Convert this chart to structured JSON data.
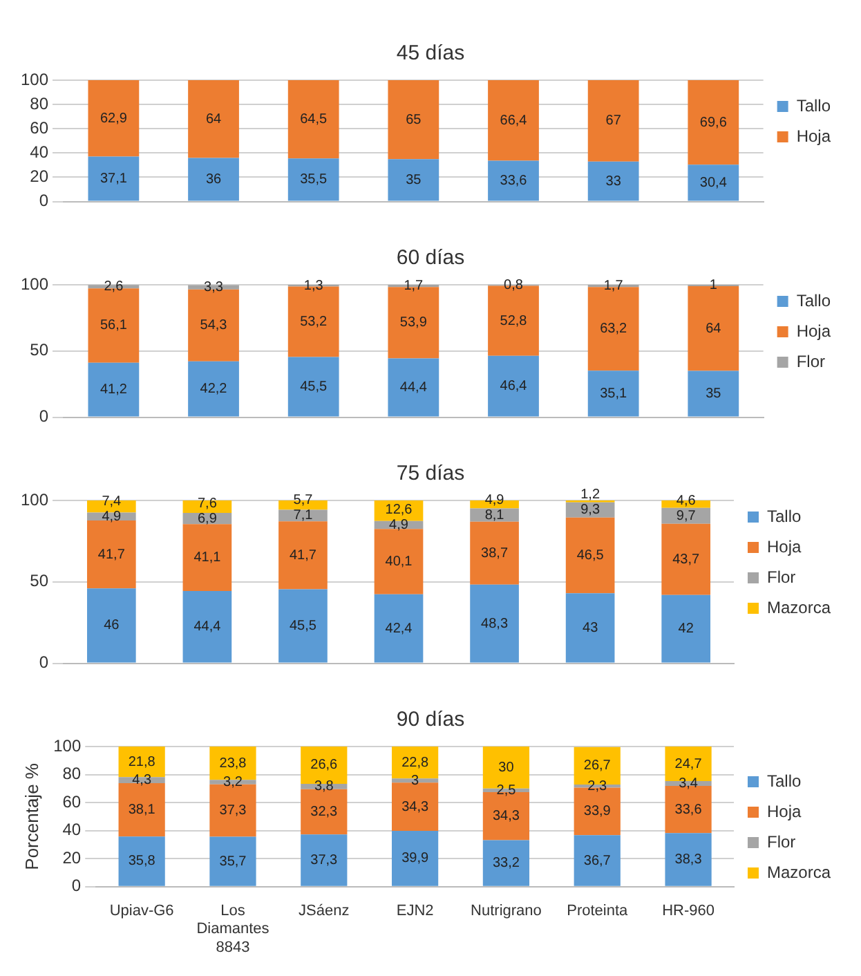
{
  "chart_data": [
    {
      "type": "bar",
      "title": "45 días",
      "stacked": true,
      "categories": [
        null,
        null,
        null,
        null,
        null,
        null,
        null
      ],
      "tick_labels": "y",
      "ylim": [
        0,
        100
      ],
      "yticks": [
        0,
        20,
        40,
        60,
        80,
        100
      ],
      "grid": "y",
      "legend": "right",
      "series": [
        {
          "name": "Tallo",
          "color": "#5b9bd5",
          "values": [
            37.1,
            36,
            35.5,
            35,
            33.6,
            33,
            30.4
          ],
          "value_labels": [
            "37,1",
            "36",
            "35,5",
            "35",
            "33,6",
            "33",
            "30,4"
          ]
        },
        {
          "name": "Hoja",
          "color": "#ed7d31",
          "values": [
            62.9,
            64,
            64.5,
            65,
            66.4,
            67,
            69.6
          ],
          "value_labels": [
            "62,9",
            "64",
            "64,5",
            "65",
            "66,4",
            "67",
            "69,6"
          ]
        }
      ]
    },
    {
      "type": "bar",
      "title": "60 días",
      "stacked": true,
      "categories": [
        null,
        null,
        null,
        null,
        null,
        null,
        null
      ],
      "tick_labels": "y",
      "ylim": [
        0,
        100
      ],
      "yticks": [
        0,
        50,
        100
      ],
      "grid": "y",
      "legend": "right",
      "series": [
        {
          "name": "Tallo",
          "color": "#5b9bd5",
          "values": [
            41.2,
            42.2,
            45.5,
            44.4,
            46.4,
            35.1,
            35
          ],
          "value_labels": [
            "41,2",
            "42,2",
            "45,5",
            "44,4",
            "46,4",
            "35,1",
            "35"
          ]
        },
        {
          "name": "Hoja",
          "color": "#ed7d31",
          "values": [
            56.1,
            54.3,
            53.2,
            53.9,
            52.8,
            63.2,
            64
          ],
          "value_labels": [
            "56,1",
            "54,3",
            "53,2",
            "53,9",
            "52,8",
            "63,2",
            "64"
          ]
        },
        {
          "name": "Flor",
          "color": "#a5a5a5",
          "values": [
            2.6,
            3.3,
            1.3,
            1.7,
            0.8,
            1.7,
            1
          ],
          "value_labels": [
            "2,6",
            "3,3",
            "1,3",
            "1,7",
            "0,8",
            "1,7",
            "1"
          ]
        }
      ]
    },
    {
      "type": "bar",
      "title": "75 días",
      "stacked": true,
      "categories": [
        null,
        null,
        null,
        null,
        null,
        null,
        null
      ],
      "tick_labels": "y",
      "ylim": [
        0,
        100
      ],
      "yticks": [
        0,
        50,
        100
      ],
      "grid": "y",
      "legend": "right",
      "series": [
        {
          "name": "Tallo",
          "color": "#5b9bd5",
          "values": [
            46,
            44.4,
            45.5,
            42.4,
            48.3,
            43,
            42
          ],
          "value_labels": [
            "46",
            "44,4",
            "45,5",
            "42,4",
            "48,3",
            "43",
            "42"
          ]
        },
        {
          "name": "Hoja",
          "color": "#ed7d31",
          "values": [
            41.7,
            41.1,
            41.7,
            40.1,
            38.7,
            46.5,
            43.7
          ],
          "value_labels": [
            "41,7",
            "41,1",
            "41,7",
            "40,1",
            "38,7",
            "46,5",
            "43,7"
          ]
        },
        {
          "name": "Flor",
          "color": "#a5a5a5",
          "values": [
            4.9,
            6.9,
            7.1,
            4.9,
            8.1,
            9.3,
            9.7
          ],
          "value_labels": [
            "4,9",
            "6,9",
            "7,1",
            "4,9",
            "8,1",
            "9,3",
            "9,7"
          ]
        },
        {
          "name": "Mazorca",
          "color": "#ffc000",
          "values": [
            7.4,
            7.6,
            5.7,
            12.6,
            4.9,
            1.2,
            4.6
          ],
          "value_labels": [
            "7,4",
            "7,6",
            "5,7",
            "12,6",
            "4,9",
            "1,2",
            "4,6"
          ]
        }
      ]
    },
    {
      "type": "bar",
      "title": "90 días",
      "ylabel": "Porcentaje %",
      "stacked": true,
      "categories": [
        "Upiav-G6",
        "Los Diamantes 8843",
        "JSáenz",
        "EJN2",
        "Nutrigrano",
        "Proteinta",
        "HR-960"
      ],
      "ylim": [
        0,
        100
      ],
      "yticks": [
        0,
        20,
        40,
        60,
        80,
        100
      ],
      "grid": "y",
      "legend": "right",
      "series": [
        {
          "name": "Tallo",
          "color": "#5b9bd5",
          "values": [
            35.8,
            35.7,
            37.3,
            39.9,
            33.2,
            36.7,
            38.3
          ],
          "value_labels": [
            "35,8",
            "35,7",
            "37,3",
            "39,9",
            "33,2",
            "36,7",
            "38,3"
          ]
        },
        {
          "name": "Hoja",
          "color": "#ed7d31",
          "values": [
            38.1,
            37.3,
            32.3,
            34.3,
            34.3,
            33.9,
            33.6
          ],
          "value_labels": [
            "38,1",
            "37,3",
            "32,3",
            "34,3",
            "34,3",
            "33,9",
            "33,6"
          ]
        },
        {
          "name": "Flor",
          "color": "#a5a5a5",
          "values": [
            4.3,
            3.2,
            3.8,
            3,
            2.5,
            2.3,
            3.4
          ],
          "value_labels": [
            "4,3",
            "3,2",
            "3,8",
            "3",
            "2,5",
            "2,3",
            "3,4"
          ]
        },
        {
          "name": "Mazorca",
          "color": "#ffc000",
          "values": [
            21.8,
            23.8,
            26.6,
            22.8,
            30,
            26.7,
            24.7
          ],
          "value_labels": [
            "21,8",
            "23,8",
            "26,6",
            "22,8",
            "30",
            "26,7",
            "24,7"
          ]
        }
      ]
    }
  ]
}
